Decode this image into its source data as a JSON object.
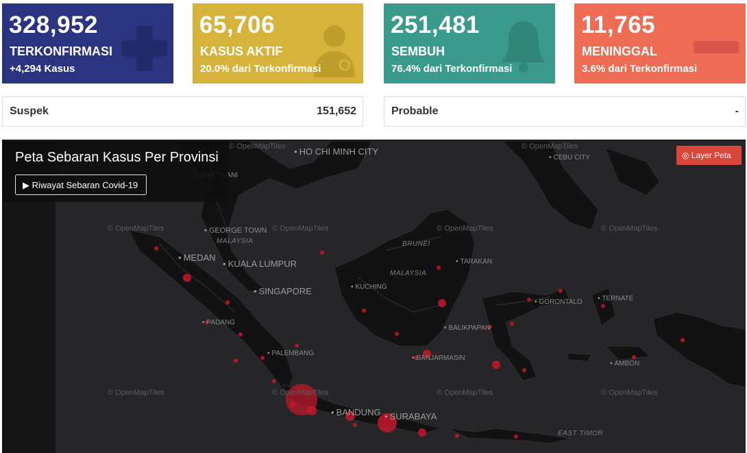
{
  "stats": [
    {
      "number": "328,952",
      "label": "TERKONFIRMASI",
      "sub": "+4,294 Kasus",
      "color": "#2b3480",
      "icon": "plus-icon"
    },
    {
      "number": "65,706",
      "label": "KASUS AKTIF",
      "sub": "20.0% dari Terkonfirmasi",
      "color": "#d6b43c",
      "icon": "doctor-icon"
    },
    {
      "number": "251,481",
      "label": "SEMBUH",
      "sub": "76.4% dari Terkonfirmasi",
      "color": "#3a9a8b",
      "icon": "bell-icon"
    },
    {
      "number": "11,765",
      "label": "MENINGGAL",
      "sub": "3.6% dari Terkonfirmasi",
      "color": "#ee6c54",
      "icon": "minus-icon"
    }
  ],
  "info": [
    {
      "label": "Suspek",
      "value": "151,652"
    },
    {
      "label": "Probable",
      "value": "-"
    }
  ],
  "map": {
    "title": "Peta Sebaran Kasus Per Provinsi",
    "history_button": "▶ Riwayat Sebaran Covid-19",
    "layer_button": "◎ Layer Peta",
    "credit": "© OpenMapTiles",
    "cities": [
      "HO CHI MINH CITY",
      "CEBU CITY",
      "SURAT THANI",
      "GEORGE TOWN",
      "MEDAN",
      "KUALA LUMPUR",
      "SINGAPORE",
      "PADANG",
      "PALEMBANG",
      "KUCHING",
      "TARAKAN",
      "BALIKPAPAN",
      "BANJARMASIN",
      "GORONTALO",
      "TERNATE",
      "AMBON",
      "BANDUNG",
      "SURABAYA",
      "EAST TIMOR"
    ],
    "countries": [
      "MALAYSIA",
      "BRUNEI",
      "MALAYSIA"
    ]
  }
}
